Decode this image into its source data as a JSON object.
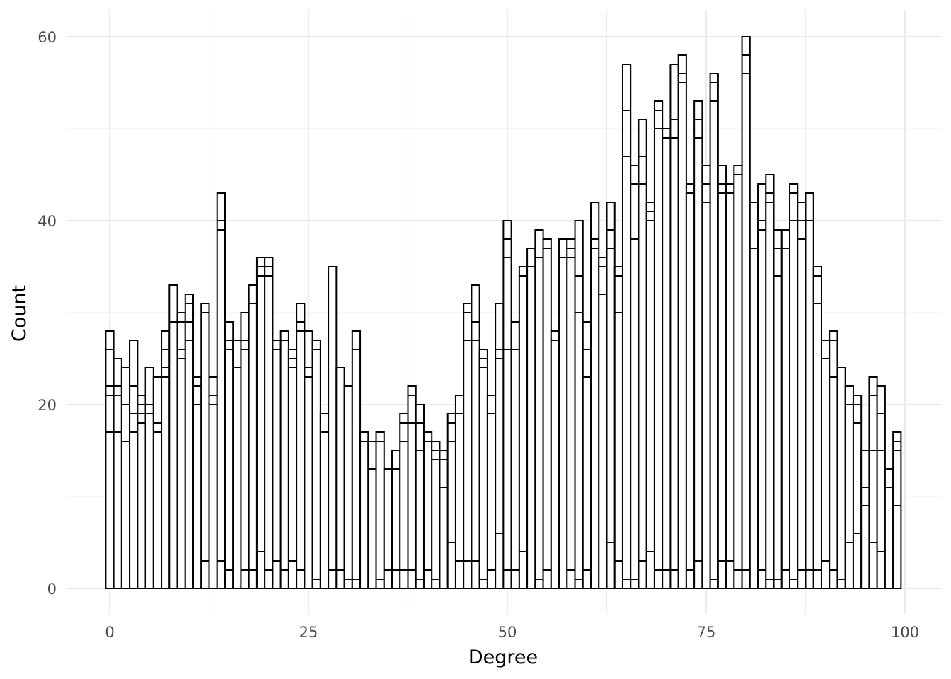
{
  "chart_data": {
    "type": "bar",
    "subtype": "stacked-histogram",
    "fill_color": "#ffffff",
    "outline_color": "#000000",
    "grid": true,
    "legend": "none",
    "xlabel": "Degree",
    "ylabel": "Count",
    "xlim": [
      0,
      100
    ],
    "ylim": [
      0,
      60
    ],
    "x_ticks": [
      {
        "value": 0,
        "label": "0"
      },
      {
        "value": 25,
        "label": "25"
      },
      {
        "value": 50,
        "label": "50"
      },
      {
        "value": 75,
        "label": "75"
      },
      {
        "value": 100,
        "label": "100"
      }
    ],
    "y_ticks": [
      {
        "value": 0,
        "label": "0"
      },
      {
        "value": 20,
        "label": "20"
      },
      {
        "value": 40,
        "label": "40"
      },
      {
        "value": 60,
        "label": "60"
      }
    ],
    "x": [
      0,
      1,
      2,
      3,
      4,
      5,
      6,
      7,
      8,
      9,
      10,
      11,
      12,
      13,
      14,
      15,
      16,
      17,
      18,
      19,
      20,
      21,
      22,
      23,
      24,
      25,
      26,
      27,
      28,
      29,
      30,
      31,
      32,
      33,
      34,
      35,
      36,
      37,
      38,
      39,
      40,
      41,
      42,
      43,
      44,
      45,
      46,
      47,
      48,
      49,
      50,
      51,
      52,
      53,
      54,
      55,
      56,
      57,
      58,
      59,
      60,
      61,
      62,
      63,
      64,
      65,
      66,
      67,
      68,
      69,
      70,
      71,
      72,
      73,
      74,
      75,
      76,
      77,
      78,
      79,
      80,
      81,
      82,
      83,
      84,
      85,
      86,
      87,
      88,
      89,
      90,
      91,
      92,
      93,
      94,
      95,
      96,
      97,
      98,
      99
    ],
    "totals": [
      28,
      25,
      24,
      27,
      21,
      24,
      23,
      28,
      33,
      30,
      32,
      23,
      31,
      23,
      43,
      29,
      27,
      30,
      33,
      36,
      36,
      27,
      28,
      26,
      31,
      28,
      27,
      19,
      35,
      24,
      22,
      28,
      17,
      16,
      17,
      13,
      15,
      19,
      22,
      20,
      17,
      16,
      15,
      19,
      21,
      31,
      33,
      26,
      21,
      31,
      40,
      29,
      35,
      37,
      39,
      38,
      28,
      38,
      38,
      40,
      29,
      42,
      36,
      42,
      35,
      57,
      46,
      51,
      42,
      53,
      50,
      57,
      58,
      44,
      53,
      46,
      56,
      46,
      44,
      46,
      60,
      42,
      44,
      45,
      39,
      39,
      44,
      42,
      43,
      35,
      27,
      28,
      24,
      22,
      21,
      15,
      23,
      22,
      13,
      17
    ],
    "stack_boundaries": [
      [
        17,
        21,
        22,
        26
      ],
      [
        17,
        21,
        22
      ],
      [
        16,
        20
      ],
      [
        17,
        19,
        22
      ],
      [
        18,
        19,
        20
      ],
      [
        19,
        20
      ],
      [
        17,
        18,
        23
      ],
      [
        23,
        24,
        26
      ],
      [
        29
      ],
      [
        25,
        26,
        29
      ],
      [
        27,
        29,
        31
      ],
      [
        20,
        22
      ],
      [
        3,
        30
      ],
      [
        20,
        21
      ],
      [
        3,
        39,
        40
      ],
      [
        2,
        26,
        27
      ],
      [
        24,
        27
      ],
      [
        2,
        26,
        27
      ],
      [
        2,
        31
      ],
      [
        4,
        34,
        35
      ],
      [
        2,
        34,
        35
      ],
      [
        3,
        26
      ],
      [
        2,
        27
      ],
      [
        3,
        24,
        25
      ],
      [
        2,
        28,
        29
      ],
      [
        23,
        24
      ],
      [
        1,
        26
      ],
      [
        17
      ],
      [
        2
      ],
      [
        2
      ],
      [
        1
      ],
      [
        1,
        26
      ],
      [
        16
      ],
      [
        13,
        16
      ],
      [
        1,
        16
      ],
      [
        2,
        13
      ],
      [
        2,
        13
      ],
      [
        2,
        16,
        18
      ],
      [
        2,
        18,
        21
      ],
      [
        1,
        15,
        18
      ],
      [
        2,
        16
      ],
      [
        1,
        14,
        15
      ],
      [
        11,
        14
      ],
      [
        5,
        16,
        18
      ],
      [
        3,
        19
      ],
      [
        3,
        27,
        30
      ],
      [
        3,
        27,
        29
      ],
      [
        1,
        24,
        25
      ],
      [
        2,
        19
      ],
      [
        6,
        25,
        26
      ],
      [
        2,
        26,
        36,
        38
      ],
      [
        2,
        26
      ],
      [
        4,
        34
      ],
      [
        35
      ],
      [
        1,
        36
      ],
      [
        2,
        37
      ],
      [
        27
      ],
      [
        36
      ],
      [
        2,
        36,
        37
      ],
      [
        1,
        30,
        34
      ],
      [
        2,
        23,
        26
      ],
      [
        37,
        38
      ],
      [
        32,
        35
      ],
      [
        5,
        37,
        39
      ],
      [
        3,
        30,
        34
      ],
      [
        1,
        47,
        52
      ],
      [
        1,
        38,
        44
      ],
      [
        3,
        44,
        47
      ],
      [
        4,
        40,
        41
      ],
      [
        2,
        50,
        52
      ],
      [
        2,
        49,
        50
      ],
      [
        2,
        49,
        51
      ],
      [
        55,
        56
      ],
      [
        2,
        43
      ],
      [
        3,
        49,
        51
      ],
      [
        42,
        44
      ],
      [
        1,
        53,
        55
      ],
      [
        3,
        43,
        44
      ],
      [
        3,
        43
      ],
      [
        2,
        45
      ],
      [
        2,
        56,
        58
      ],
      [
        37
      ],
      [
        2,
        39,
        40
      ],
      [
        1,
        42,
        43
      ],
      [
        1,
        34,
        37
      ],
      [
        2,
        37
      ],
      [
        1,
        40,
        43
      ],
      [
        2,
        38,
        40
      ],
      [
        2,
        40
      ],
      [
        2,
        31,
        34
      ],
      [
        3,
        25
      ],
      [
        2,
        23,
        27
      ],
      [
        1
      ],
      [
        5,
        20
      ],
      [
        6,
        18,
        20
      ],
      [
        9,
        11
      ],
      [
        5,
        15,
        21
      ],
      [
        4,
        15,
        19
      ],
      [
        11
      ],
      [
        9,
        15,
        16
      ]
    ]
  }
}
